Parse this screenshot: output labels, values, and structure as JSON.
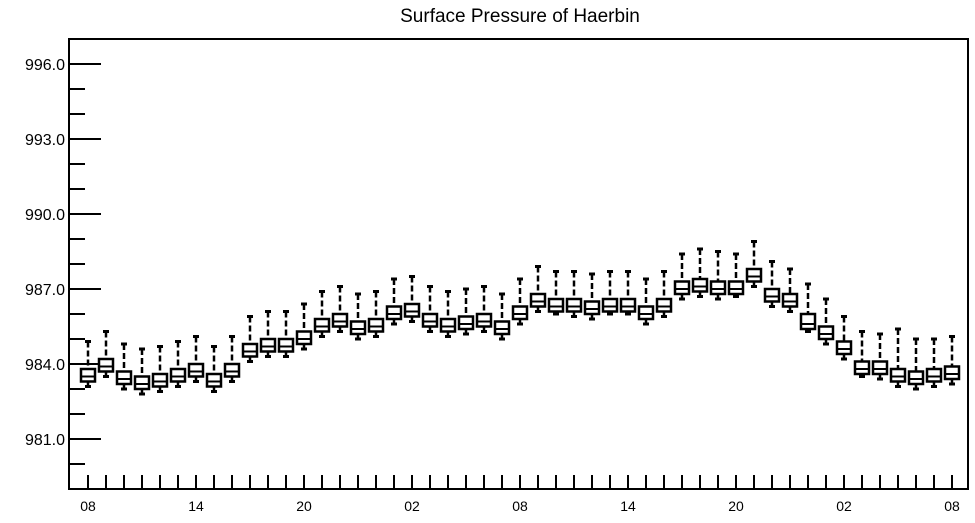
{
  "chart_data": {
    "type": "box",
    "title": "Surface Pressure of Haerbin",
    "xlabel": "",
    "ylabel": "",
    "ylim": [
      979.0,
      997.0
    ],
    "yticks": [
      "981.0",
      "984.0",
      "987.0",
      "990.0",
      "993.0",
      "996.0"
    ],
    "ytick_values": [
      981.0,
      984.0,
      987.0,
      990.0,
      993.0,
      996.0
    ],
    "xticks": [
      "08",
      "14",
      "20",
      "02",
      "08",
      "14",
      "20",
      "02",
      "08"
    ],
    "xtick_index": [
      0,
      6,
      12,
      18,
      24,
      30,
      36,
      42,
      48
    ],
    "grid": false,
    "legend": "none",
    "series": [
      {
        "min": [
          983.1,
          983.5,
          983.0,
          982.8,
          982.9,
          983.1,
          983.3,
          982.9,
          983.3,
          984.1,
          984.3,
          984.3,
          984.6,
          985.1,
          985.3,
          985.0,
          985.1,
          985.6,
          985.7,
          985.3,
          985.1,
          985.2,
          985.3,
          985.0,
          985.6,
          986.1,
          986.0,
          985.9,
          985.8,
          986.0,
          986.0,
          985.6,
          985.9,
          986.6,
          986.7,
          986.6,
          986.7,
          987.1,
          986.3,
          986.1,
          985.3,
          984.8,
          984.2,
          983.5,
          983.4,
          983.1,
          983.0,
          983.1,
          983.2
        ],
        "q1": [
          983.3,
          983.7,
          983.2,
          983.0,
          983.1,
          983.3,
          983.5,
          983.1,
          983.5,
          984.3,
          984.5,
          984.5,
          984.8,
          985.3,
          985.5,
          985.2,
          985.3,
          985.8,
          985.9,
          985.5,
          985.3,
          985.4,
          985.5,
          985.2,
          985.8,
          986.3,
          986.1,
          986.1,
          986.0,
          986.1,
          986.1,
          985.8,
          986.1,
          986.8,
          986.9,
          986.8,
          986.8,
          987.3,
          986.5,
          986.3,
          985.4,
          985.0,
          984.4,
          983.6,
          983.6,
          983.3,
          983.2,
          983.3,
          983.4
        ],
        "median": [
          983.5,
          983.9,
          983.4,
          983.2,
          983.3,
          983.5,
          983.7,
          983.3,
          983.7,
          984.5,
          984.7,
          984.7,
          985.0,
          985.5,
          985.7,
          985.4,
          985.5,
          986.0,
          986.1,
          985.7,
          985.5,
          985.6,
          985.7,
          985.4,
          986.0,
          986.5,
          986.3,
          986.3,
          986.2,
          986.3,
          986.3,
          986.0,
          986.3,
          987.0,
          987.1,
          987.0,
          987.0,
          987.5,
          986.7,
          986.5,
          985.6,
          985.2,
          984.6,
          983.8,
          983.8,
          983.5,
          983.4,
          983.5,
          983.6
        ],
        "q3": [
          983.8,
          984.2,
          983.7,
          983.5,
          983.6,
          983.8,
          984.0,
          983.6,
          984.0,
          984.8,
          985.0,
          985.0,
          985.3,
          985.8,
          986.0,
          985.7,
          985.8,
          986.3,
          986.4,
          986.0,
          985.8,
          985.9,
          986.0,
          985.7,
          986.3,
          986.8,
          986.6,
          986.6,
          986.5,
          986.6,
          986.6,
          986.3,
          986.6,
          987.3,
          987.4,
          987.3,
          987.3,
          987.8,
          987.0,
          986.8,
          986.0,
          985.5,
          984.9,
          984.1,
          984.1,
          983.8,
          983.7,
          983.8,
          983.9
        ],
        "max": [
          984.9,
          985.3,
          984.8,
          984.6,
          984.7,
          984.9,
          985.1,
          984.7,
          985.1,
          985.9,
          986.1,
          986.1,
          986.4,
          986.9,
          987.1,
          986.8,
          986.9,
          987.4,
          987.5,
          987.1,
          986.9,
          987.0,
          987.1,
          986.8,
          987.4,
          987.9,
          987.7,
          987.7,
          987.6,
          987.7,
          987.7,
          987.4,
          987.7,
          988.4,
          988.6,
          988.5,
          988.4,
          988.9,
          988.1,
          987.8,
          987.2,
          986.6,
          985.9,
          985.3,
          985.2,
          985.4,
          985.0,
          985.0,
          985.1
        ]
      }
    ]
  }
}
